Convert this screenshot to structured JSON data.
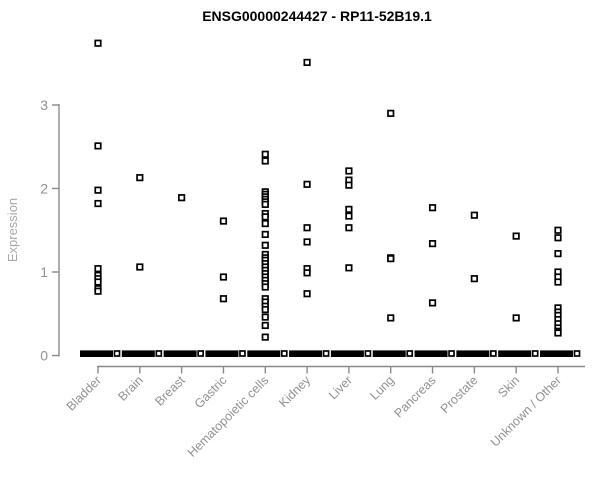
{
  "colors": {
    "axis": "#8a8a8a",
    "tick_label": "#919191",
    "y_axis_label": "#a8a8a8",
    "point": "#000000",
    "title": "#000000",
    "background": "#ffffff"
  },
  "chart_data": {
    "type": "scatter",
    "title": "ENSG00000244427 - RP11-52B19.1",
    "xlabel": "",
    "ylabel": "Expression",
    "ylim": [
      0,
      3.9
    ],
    "yticks": [
      0,
      1,
      2,
      3
    ],
    "grid": false,
    "legend": "none",
    "marker": "open-square",
    "zero_cluster_note": "each category has many samples at expression 0 drawn as a thick horizontal black dash",
    "categories": [
      {
        "label": "Bladder",
        "values": [
          3.74,
          2.51,
          1.98,
          1.82,
          1.04,
          0.96,
          0.92,
          0.88,
          0.8,
          0.77
        ],
        "zero_cluster": true
      },
      {
        "label": "Brain",
        "values": [
          2.13,
          1.06
        ],
        "zero_cluster": true
      },
      {
        "label": "Breast",
        "values": [
          1.89
        ],
        "zero_cluster": true
      },
      {
        "label": "Gastric",
        "values": [
          1.61,
          0.94,
          0.68
        ],
        "zero_cluster": true
      },
      {
        "label": "Hematopoietic cells",
        "values": [
          2.41,
          2.33,
          1.96,
          1.93,
          1.9,
          1.87,
          1.84,
          1.81,
          1.7,
          1.66,
          1.58,
          1.45,
          1.32,
          1.21,
          1.17,
          1.14,
          1.1,
          1.06,
          1.02,
          0.98,
          0.94,
          0.9,
          0.86,
          0.82,
          0.68,
          0.64,
          0.59,
          0.55,
          0.46,
          0.36,
          0.22
        ],
        "zero_cluster": true
      },
      {
        "label": "Kidney",
        "values": [
          3.51,
          2.05,
          1.53,
          1.36,
          1.04,
          0.99,
          0.74
        ],
        "zero_cluster": true
      },
      {
        "label": "Liver",
        "values": [
          2.21,
          2.1,
          2.04,
          1.75,
          1.67,
          1.53,
          1.05
        ],
        "zero_cluster": true
      },
      {
        "label": "Lung",
        "values": [
          2.9,
          1.17,
          1.16,
          0.45
        ],
        "zero_cluster": true
      },
      {
        "label": "Pancreas",
        "values": [
          1.77,
          1.34,
          0.63
        ],
        "zero_cluster": true
      },
      {
        "label": "Prostate",
        "values": [
          1.68,
          0.92
        ],
        "zero_cluster": true
      },
      {
        "label": "Skin",
        "values": [
          1.43,
          0.45
        ],
        "zero_cluster": true
      },
      {
        "label": "Unknown / Other",
        "values": [
          1.5,
          1.41,
          1.22,
          1.0,
          0.94,
          0.88,
          0.57,
          0.52,
          0.48,
          0.43,
          0.38,
          0.33,
          0.29,
          0.27
        ],
        "zero_cluster": true
      }
    ]
  }
}
